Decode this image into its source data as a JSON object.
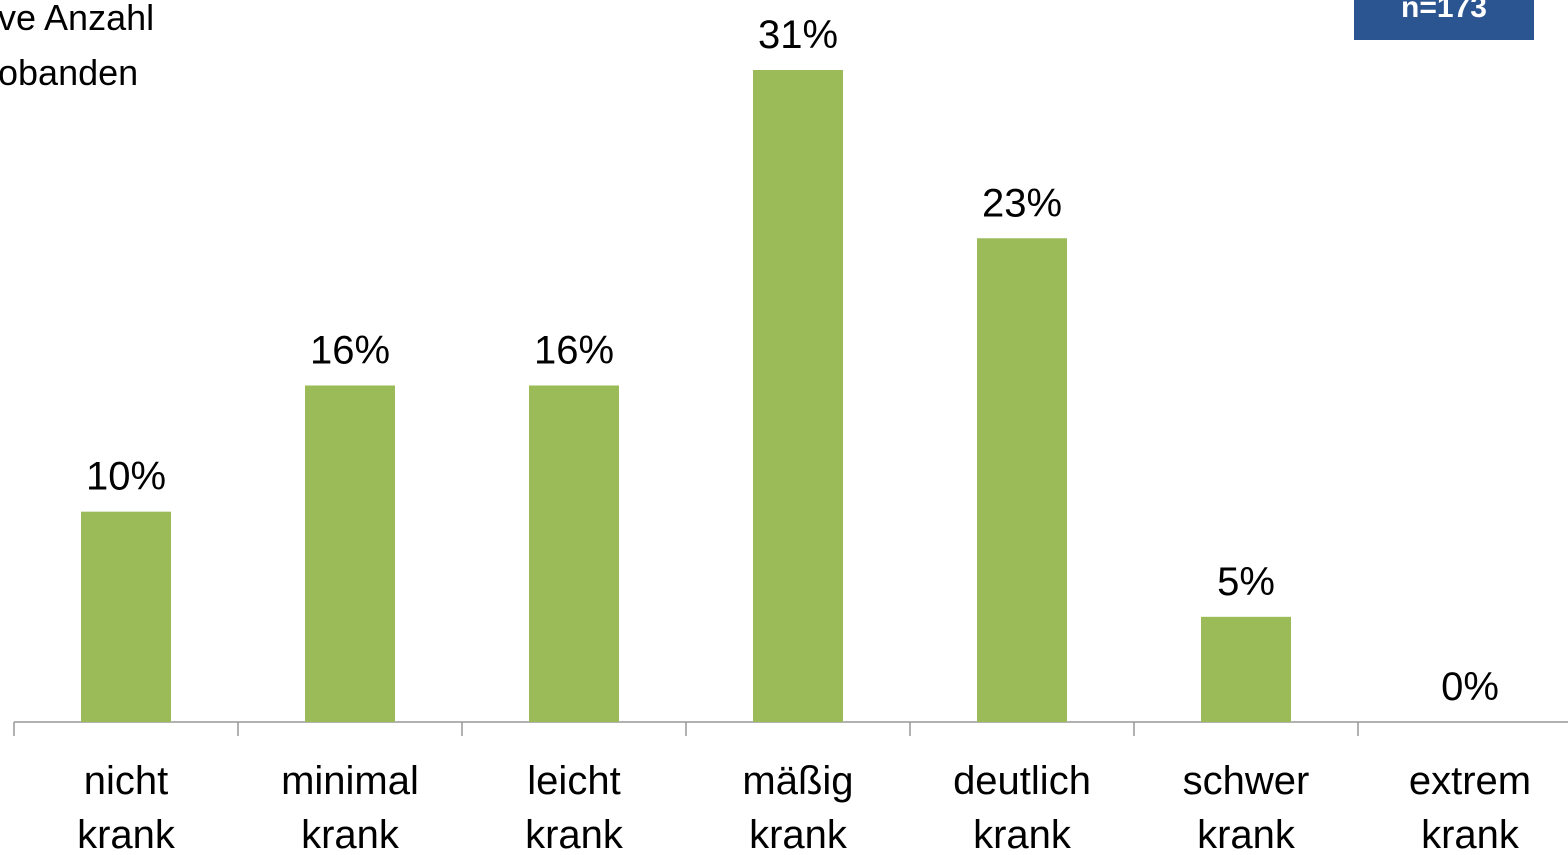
{
  "chart_data": {
    "type": "bar",
    "axis_title_lines": [
      "ve Anzahl",
      "obanden"
    ],
    "badge": "n=173",
    "categories": [
      [
        "nicht",
        "krank"
      ],
      [
        "minimal",
        "krank"
      ],
      [
        "leicht",
        "krank"
      ],
      [
        "mäßig",
        "krank"
      ],
      [
        "deutlich",
        "krank"
      ],
      [
        "schwer",
        "krank"
      ],
      [
        "extrem",
        "krank"
      ]
    ],
    "values": [
      10,
      16,
      16,
      31,
      23,
      5,
      0
    ],
    "value_labels": [
      "10%",
      "16%",
      "16%",
      "31%",
      "23%",
      "5%",
      "0%"
    ],
    "color": "#9bbb59"
  }
}
